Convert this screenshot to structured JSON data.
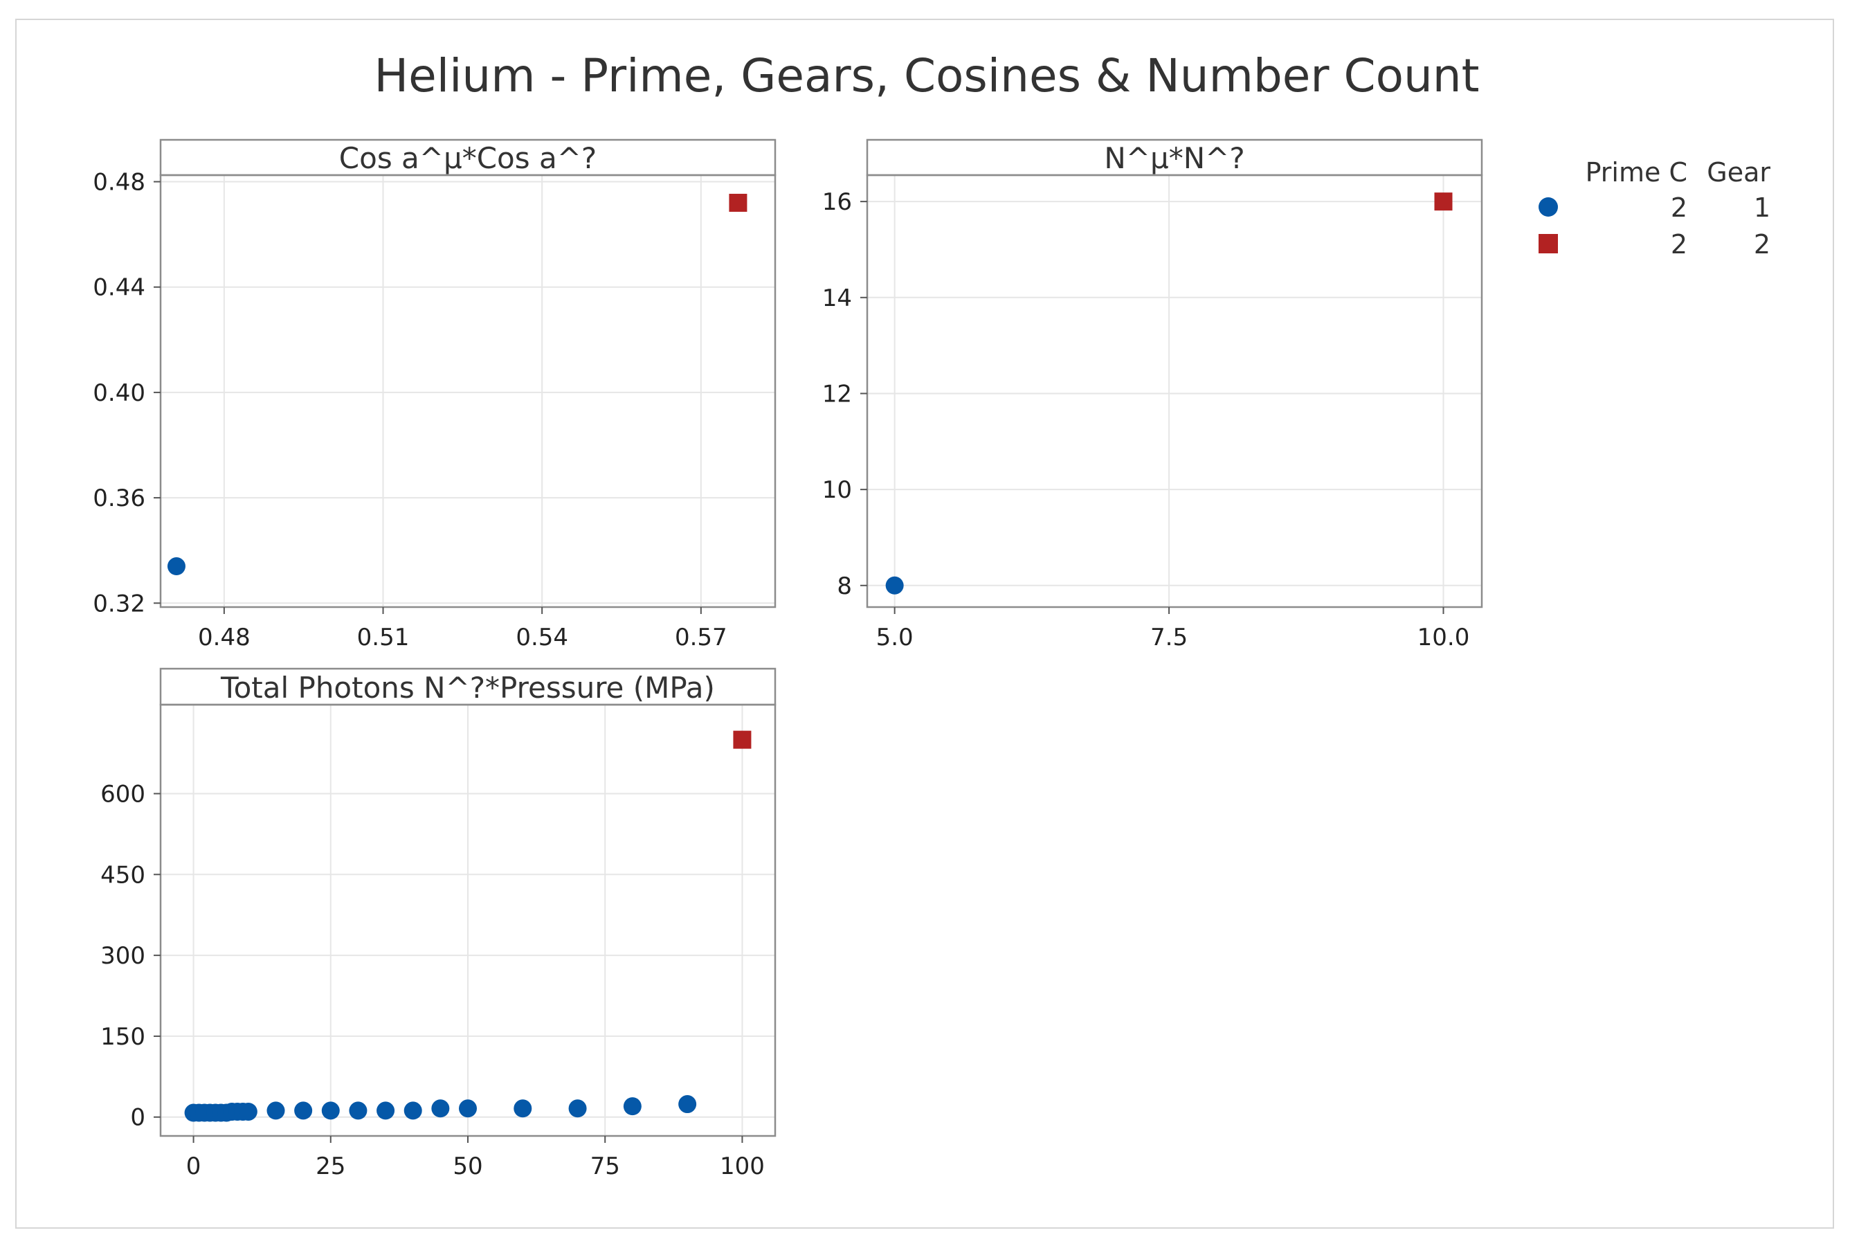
{
  "title": "Helium - Prime, Gears, Cosines & Number Count",
  "colors": {
    "group1": "#0558a8",
    "group2": "#b22222",
    "grid": "#e6e6e6",
    "frame": "#8c8c8c"
  },
  "legend": {
    "headers": [
      "Prime C",
      "Gear"
    ],
    "rows": [
      {
        "marker": "circle",
        "color": "#0558a8",
        "prime_c": "2",
        "gear": "1"
      },
      {
        "marker": "square",
        "color": "#b22222",
        "prime_c": "2",
        "gear": "2"
      }
    ]
  },
  "chart_data": [
    {
      "type": "scatter",
      "title": "Cos a^μ*Cos a^?",
      "xlim": [
        0.468,
        0.584
      ],
      "ylim": [
        0.3185,
        0.4825
      ],
      "xticks": [
        0.48,
        0.51,
        0.54,
        0.57
      ],
      "xtick_labels": [
        "0.48",
        "0.51",
        "0.54",
        "0.57"
      ],
      "yticks": [
        0.32,
        0.36,
        0.4,
        0.44,
        0.48
      ],
      "ytick_labels": [
        "0.32",
        "0.36",
        "0.40",
        "0.44",
        "0.48"
      ],
      "grid": true,
      "series": [
        {
          "group": 1,
          "marker": "circle",
          "color": "#0558a8",
          "points": [
            [
              0.471,
              0.334
            ]
          ]
        },
        {
          "group": 2,
          "marker": "square",
          "color": "#b22222",
          "points": [
            [
              0.577,
              0.472
            ]
          ]
        }
      ]
    },
    {
      "type": "scatter",
      "title": "N^μ*N^?",
      "xlim": [
        4.75,
        10.35
      ],
      "ylim": [
        7.55,
        16.55
      ],
      "xticks": [
        5.0,
        7.5,
        10.0
      ],
      "xtick_labels": [
        "5.0",
        "7.5",
        "10.0"
      ],
      "yticks": [
        8,
        10,
        12,
        14,
        16
      ],
      "ytick_labels": [
        "8",
        "10",
        "12",
        "14",
        "16"
      ],
      "grid": true,
      "series": [
        {
          "group": 1,
          "marker": "circle",
          "color": "#0558a8",
          "points": [
            [
              5,
              8
            ]
          ]
        },
        {
          "group": 2,
          "marker": "square",
          "color": "#b22222",
          "points": [
            [
              10,
              16
            ]
          ]
        }
      ]
    },
    {
      "type": "scatter",
      "title": "Total Photons N^?*Pressure (MPa)",
      "xlim": [
        -6,
        106
      ],
      "ylim": [
        -35,
        765
      ],
      "xticks": [
        0,
        25,
        50,
        75,
        100
      ],
      "xtick_labels": [
        "0",
        "25",
        "50",
        "75",
        "100"
      ],
      "yticks": [
        0,
        150,
        300,
        450,
        600
      ],
      "ytick_labels": [
        "0",
        "150",
        "300",
        "450",
        "600"
      ],
      "grid": true,
      "series": [
        {
          "group": 1,
          "marker": "circle",
          "color": "#0558a8",
          "points": [
            [
              0,
              8
            ],
            [
              1,
              8
            ],
            [
              2,
              8
            ],
            [
              3,
              8
            ],
            [
              4,
              8
            ],
            [
              5,
              8
            ],
            [
              6,
              8
            ],
            [
              7,
              10
            ],
            [
              8,
              10
            ],
            [
              9,
              10
            ],
            [
              10,
              10
            ],
            [
              15,
              12
            ],
            [
              20,
              12
            ],
            [
              25,
              12
            ],
            [
              30,
              12
            ],
            [
              35,
              12
            ],
            [
              40,
              12
            ],
            [
              45,
              16
            ],
            [
              50,
              16
            ],
            [
              60,
              16
            ],
            [
              70,
              16
            ],
            [
              80,
              20
            ],
            [
              90,
              24
            ]
          ]
        },
        {
          "group": 2,
          "marker": "square",
          "color": "#b22222",
          "points": [
            [
              100,
              700
            ]
          ]
        }
      ]
    }
  ]
}
